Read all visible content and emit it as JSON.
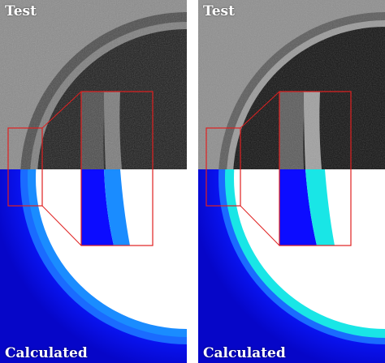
{
  "panels": [
    {
      "top_label": "Test",
      "bottom_label": "Calculated",
      "band_color": "#0c0cff",
      "inner_band_color": "#1a8cff"
    },
    {
      "top_label": "Test",
      "bottom_label": "Calculated",
      "band_color": "#0c0cff",
      "inner_band_color": "#19e6e6"
    }
  ],
  "colors": {
    "zoom_box": "#e02020",
    "film_dark": "#151515",
    "film_grey": "#8a8a8a"
  }
}
